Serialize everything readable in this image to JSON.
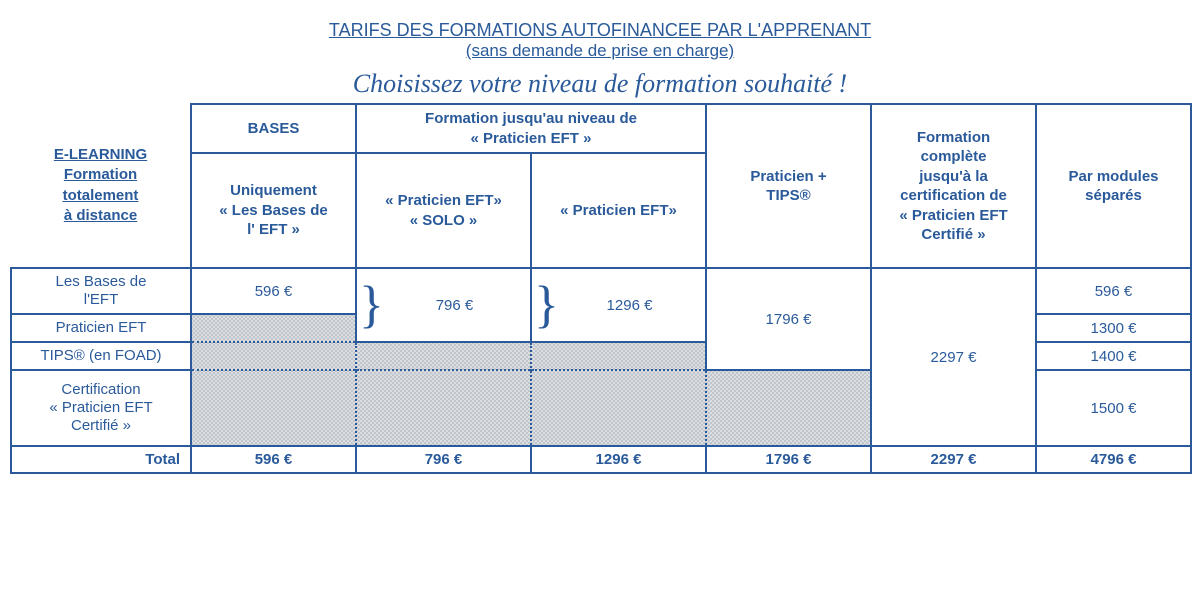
{
  "header": {
    "title_line1": "TARIFS DES FORMATIONS AUTOFINANCEE PAR L'APPRENANT",
    "title_line2": "(sans demande de prise en charge)",
    "script": "Choisissez votre niveau de formation souhaité !"
  },
  "colors": {
    "primary": "#2a5a9a",
    "shade_bg": "#dcdee2",
    "shade_dot": "#6e7b8a",
    "page_bg": "#ffffff"
  },
  "table": {
    "row_header_main": "E-LEARNING\nFormation\ntotalement\nà distance",
    "col_groups": {
      "bases": "BASES",
      "praticien_group": "Formation  jusqu'au niveau de\n« Praticien EFT »"
    },
    "col_heads": {
      "bases_sub": "Uniquement\n« Les Bases de\nl' EFT »",
      "solo": "« Praticien EFT»\n« SOLO »",
      "praticien": "« Praticien EFT»",
      "tips": "Praticien +\nTIPS®",
      "complete": "Formation\ncomplète\njusqu'à la\ncertification de\n« Praticien EFT\nCertifié »",
      "modules": "Par modules\nséparés"
    },
    "row_labels": {
      "r1": "Les Bases de\nl'EFT",
      "r2": "Praticien EFT",
      "r3": "TIPS® (en FOAD)",
      "r4": "Certification\n« Praticien EFT\nCertifié »",
      "total": "Total"
    },
    "prices": {
      "bases_r1": "596 €",
      "solo_merged": "796 €",
      "praticien_merged": "1296 €",
      "tips_merged": "1796 €",
      "complete_merged": "2297 €",
      "modules_r1": "596 €",
      "modules_r2": "1300 €",
      "modules_r3": "1400 €",
      "modules_r4": "1500 €"
    },
    "totals": {
      "c1": "596 €",
      "c2": "796 €",
      "c3": "1296 €",
      "c4": "1796 €",
      "c5": "2297 €",
      "c6": "4796 €"
    }
  }
}
